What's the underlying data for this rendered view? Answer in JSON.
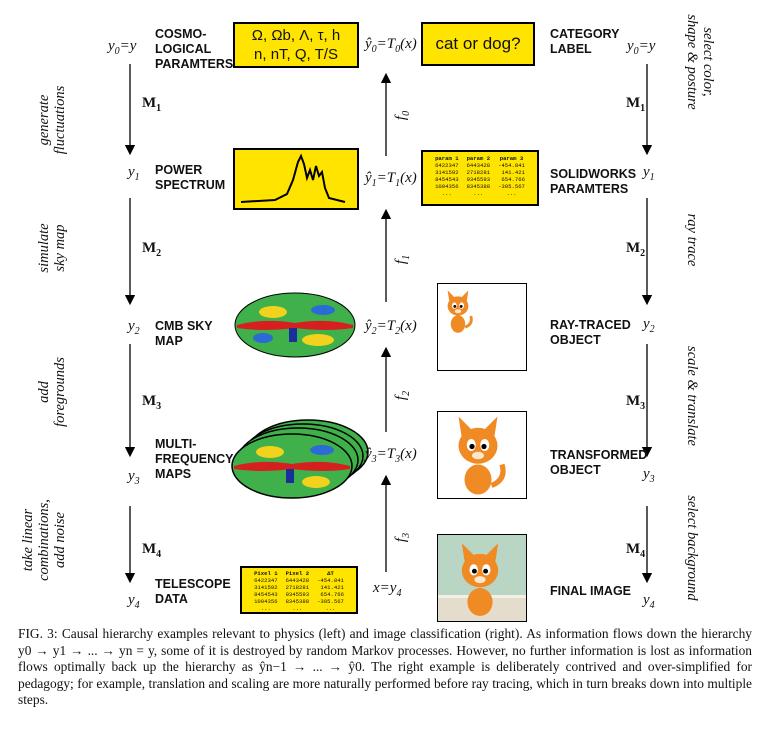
{
  "left": {
    "levels": [
      {
        "label": "COSMO-\nLOGICAL\nPARAMTERS",
        "y_symbol": "y",
        "y_index": "0",
        "y_suffix": "=y"
      },
      {
        "label": "POWER\nSPECTRUM",
        "y_symbol": "y",
        "y_index": "1",
        "y_suffix": ""
      },
      {
        "label": "CMB SKY\nMAP",
        "y_symbol": "y",
        "y_index": "2",
        "y_suffix": ""
      },
      {
        "label": "MULTI-\nFREQUENCY\nMAPS",
        "y_symbol": "y",
        "y_index": "3",
        "y_suffix": ""
      },
      {
        "label": "TELESCOPE\nDATA",
        "y_symbol": "y",
        "y_index": "4",
        "y_suffix": ""
      }
    ],
    "markov": [
      "M1",
      "M2",
      "M3",
      "M4"
    ],
    "processes": [
      "generate\nfluctuations",
      "simulate\nsky map",
      "add\nforegrounds",
      "take linear\ncombinations,\nadd noise"
    ]
  },
  "right": {
    "levels": [
      {
        "label": "CATEGORY\nLABEL",
        "y_symbol": "y",
        "y_index": "0",
        "y_suffix": "=y"
      },
      {
        "label": "SOLIDWORKS\nPARAMTERS",
        "y_symbol": "y",
        "y_index": "1",
        "y_suffix": ""
      },
      {
        "label": "RAY-TRACED\nOBJECT",
        "y_symbol": "y",
        "y_index": "2",
        "y_suffix": ""
      },
      {
        "label": "TRANSFORMED\nOBJECT",
        "y_symbol": "y",
        "y_index": "3",
        "y_suffix": ""
      },
      {
        "label": "FINAL IMAGE",
        "y_symbol": "y",
        "y_index": "4",
        "y_suffix": ""
      }
    ],
    "markov": [
      "M1",
      "M2",
      "M3",
      "M4"
    ],
    "processes": [
      "select color,\nshape & posture",
      "ray trace",
      "scale & translate",
      "select background"
    ]
  },
  "middle": {
    "estimates": [
      "ŷ0=T0(x)",
      "ŷ1=T1(x)",
      "ŷ2=T2(x)",
      "ŷ3=T3(x)",
      "x=y4"
    ],
    "functions": [
      "f0",
      "f1",
      "f2",
      "f3"
    ]
  },
  "cosmo_params_text": "Ω, Ωb, Λ, τ, h\nn, nT, Q, T/S",
  "category_box_text": "cat or dog?",
  "solidworks_table": {
    "headers": [
      "param 1",
      "param 2",
      "param 3"
    ],
    "rows": [
      [
        "6422347",
        "6443428",
        "-454.841"
      ],
      [
        "3141592",
        "2718281",
        "141.421"
      ],
      [
        "8454543",
        "9345593",
        "654.766"
      ],
      [
        "1004356",
        "8345388",
        "-305.567"
      ],
      [
        "...",
        "...",
        "..."
      ]
    ]
  },
  "telescope_table": {
    "headers": [
      "Pixel 1",
      "Pixel 2",
      "ΔT"
    ],
    "rows": [
      [
        "6422347",
        "6443428",
        "-454.841"
      ],
      [
        "3141592",
        "2718281",
        "141.421"
      ],
      [
        "8454543",
        "9345593",
        "654.766"
      ],
      [
        "1004356",
        "8345388",
        "-305.567"
      ],
      [
        "...",
        "...",
        "..."
      ]
    ]
  },
  "caption": {
    "label": "FIG. 3:",
    "text": "Causal hierarchy examples relevant to physics (left) and image classification (right). As information flows down the hierarchy y0 → y1 → ... → yn = y, some of it is destroyed by random Markov processes. However, no further information is lost as information flows optimally back up the hierarchy as ŷn−1 → ... → ŷ0. The right example is deliberately contrived and over-simplified for pedagogy; for example, translation and scaling are more naturally performed before ray tracing, which in turn breaks down into multiple steps."
  },
  "colors": {
    "highlight": "#ffe400",
    "cmb_red": "#d62020",
    "cmb_green": "#3fb04a",
    "cat_orange": "#f08a24"
  }
}
